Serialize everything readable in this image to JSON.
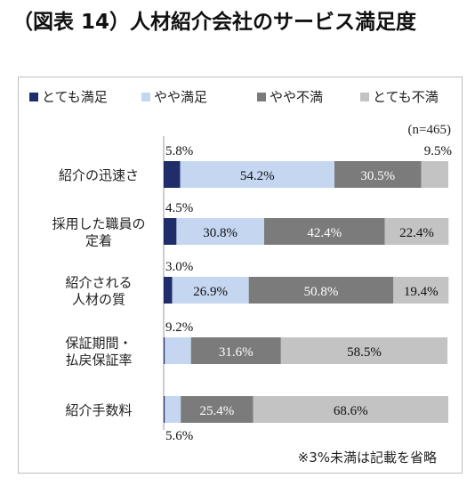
{
  "title": "（図表 14）人材紹介会社のサービス満足度",
  "chart_data": {
    "type": "bar",
    "orientation": "horizontal",
    "stacked": true,
    "percent_stacked": true,
    "sample_note": "(n=465)",
    "footnote": "※3%未満は記載を省略",
    "legend_position": "top",
    "xlim": [
      0,
      100
    ],
    "categories": [
      [
        "紹介の迅速さ"
      ],
      [
        "採用した職員の",
        "定着"
      ],
      [
        "紹介される",
        "人材の質"
      ],
      [
        "保証期間・",
        "払戻保証率"
      ],
      [
        "紹介手数料"
      ]
    ],
    "series": [
      {
        "name": "とても満足",
        "color": "#1f2d6b",
        "values": [
          5.8,
          4.5,
          3.0,
          0.4,
          0.4
        ],
        "labels": [
          "5.8%",
          "4.5%",
          "3.0%",
          "",
          ""
        ]
      },
      {
        "name": "やや満足",
        "color": "#c5d6f0",
        "values": [
          54.2,
          30.8,
          26.9,
          9.2,
          5.6
        ],
        "labels": [
          "54.2%",
          "30.8%",
          "26.9%",
          "9.2%",
          "5.6%"
        ]
      },
      {
        "name": "やや不満",
        "color": "#7b7b7b",
        "values": [
          30.5,
          42.4,
          50.8,
          31.6,
          25.4
        ],
        "labels": [
          "30.5%",
          "42.4%",
          "50.8%",
          "31.6%",
          "25.4%"
        ]
      },
      {
        "name": "とても不満",
        "color": "#c3c3c3",
        "values": [
          9.5,
          22.4,
          19.4,
          58.5,
          68.6
        ],
        "labels": [
          "9.5%",
          "22.4%",
          "19.4%",
          "58.5%",
          "68.6%"
        ]
      }
    ]
  }
}
